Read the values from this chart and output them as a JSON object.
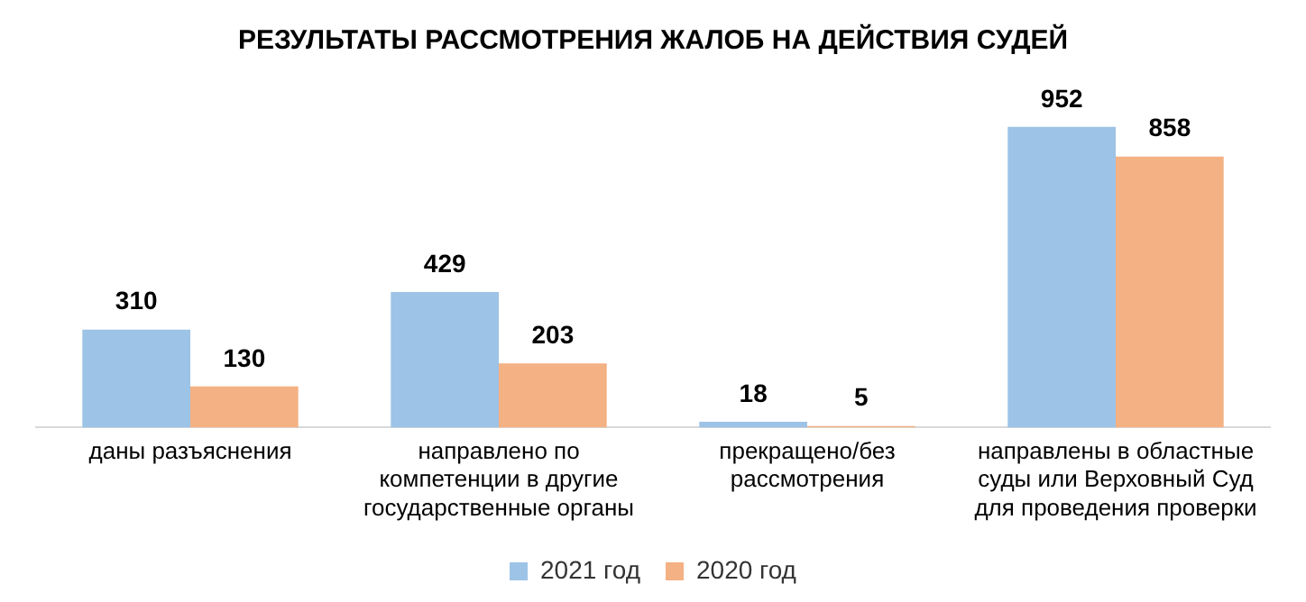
{
  "chart_data": {
    "type": "bar",
    "title": "РЕЗУЛЬТАТЫ РАССМОТРЕНИЯ ЖАЛОБ НА ДЕЙСТВИЯ СУДЕЙ",
    "categories": [
      "даны разъяснения",
      "направлено по компетенции в другие государственные органы",
      "прекращено/без рассмотрения",
      "направлены в областные суды или Верховный Суд для проведения проверки"
    ],
    "series": [
      {
        "name": "2021 год",
        "color": "#9dc3e6",
        "values": [
          310,
          429,
          18,
          952
        ]
      },
      {
        "name": "2020 год",
        "color": "#f4b183",
        "values": [
          130,
          203,
          5,
          858
        ]
      }
    ],
    "data_labels": true,
    "grid": false,
    "legend": "bottom",
    "tick_labels": "x"
  }
}
